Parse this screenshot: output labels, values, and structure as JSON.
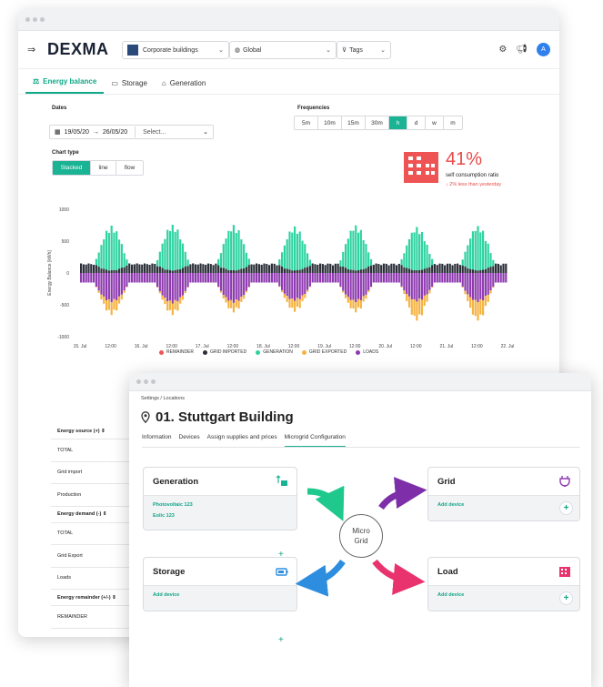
{
  "app": {
    "logo": "DEXMA",
    "building_select": "Corporate buildings",
    "region_select": "Global",
    "tags_select": "Tags",
    "avatar": "A"
  },
  "tabs": [
    {
      "label": "Energy balance",
      "active": true
    },
    {
      "label": "Storage"
    },
    {
      "label": "Generation"
    }
  ],
  "filters": {
    "dates_label": "Dates",
    "date_from": "19/05/20",
    "date_arrow": "→",
    "date_to": "26/05/20",
    "date_select": "Select...",
    "frequencies_label": "Frequencies",
    "frequencies": [
      "5m",
      "10m",
      "15m",
      "30m",
      "h",
      "d",
      "w",
      "m"
    ],
    "frequency_selected": "h",
    "chart_type_label": "Chart type",
    "chart_types": [
      "Stacked",
      "line",
      "flow"
    ],
    "chart_type_selected": "Stacked"
  },
  "kpi": {
    "value": "41%",
    "label": "self consumption ratio",
    "sub": "↓ 2% less than yesterday",
    "color": "#e84a4a"
  },
  "chart_data": {
    "type": "bar",
    "stacked": true,
    "ylabel": "Energy Balance [kWh]",
    "ylim": [
      -1000,
      1000
    ],
    "yticks": [
      "1000",
      "500",
      "0",
      "-500",
      "-1000"
    ],
    "xticks": [
      "15. Jul",
      "12:00",
      "16. Jul",
      "12:00",
      "17. Jul",
      "12:00",
      "18. Jul",
      "12:00",
      "19. Jul",
      "12:00",
      "20. Jul",
      "12:00",
      "21. Jul",
      "12:00",
      "22. Jul"
    ],
    "days": 7,
    "hours_per_day": 24,
    "profile": {
      "grid_imported_base": 150,
      "generation_peak": [
        700,
        720,
        710,
        690,
        710,
        680,
        700
      ],
      "loads_base": 150,
      "loads_peak": [
        460,
        480,
        470,
        440,
        460,
        450,
        460
      ],
      "grid_exported_peak": [
        200,
        180,
        150,
        170,
        160,
        300,
        290
      ]
    },
    "legend": [
      {
        "name": "REMAINDER",
        "color": "#ef5454"
      },
      {
        "name": "GRID IMPORTED",
        "color": "#2b2f38"
      },
      {
        "name": "GENERATION",
        "color": "#2ed3a0"
      },
      {
        "name": "GRID EXPORTED",
        "color": "#f5b342"
      },
      {
        "name": "LOADS",
        "color": "#8e3bb0"
      }
    ],
    "grid": false,
    "legend_position": "bottom"
  },
  "table": {
    "rows": [
      {
        "label": "Energy source (+)",
        "header": true
      },
      {
        "label": "TOTAL"
      },
      {
        "label": "Grid import"
      },
      {
        "label": "Production"
      },
      {
        "label": "Energy demand (-)",
        "header": true
      },
      {
        "label": "TOTAL"
      },
      {
        "label": "Grid Export"
      },
      {
        "label": "Loads"
      },
      {
        "label": "Energy remainder (+/-)",
        "header": true
      },
      {
        "label": "REMAINDER"
      }
    ]
  },
  "location": {
    "breadcrumb": "Settings  /  Locations",
    "name": "01. Stuttgart Building",
    "tabs": [
      "Information",
      "Devices",
      "Assign supplies and prices",
      "Microgrid Configuration"
    ],
    "active_tab": "Microgrid Configuration",
    "center_label_line1": "Micro",
    "center_label_line2": "Grid",
    "cards": {
      "generation": {
        "title": "Generation",
        "devices": [
          "Photovoltaic 123",
          "Eolic 123"
        ]
      },
      "grid": {
        "title": "Grid",
        "action": "Add device"
      },
      "storage": {
        "title": "Storage",
        "action": "Add device"
      },
      "load": {
        "title": "Load",
        "action": "Add device"
      }
    },
    "plus": "+",
    "colors": {
      "generation_arrow": "#1fc98e",
      "grid_arrow": "#7d2ea8",
      "storage_arrow": "#2d8ee0",
      "load_arrow": "#e8336e",
      "accent": "#12a586"
    }
  }
}
